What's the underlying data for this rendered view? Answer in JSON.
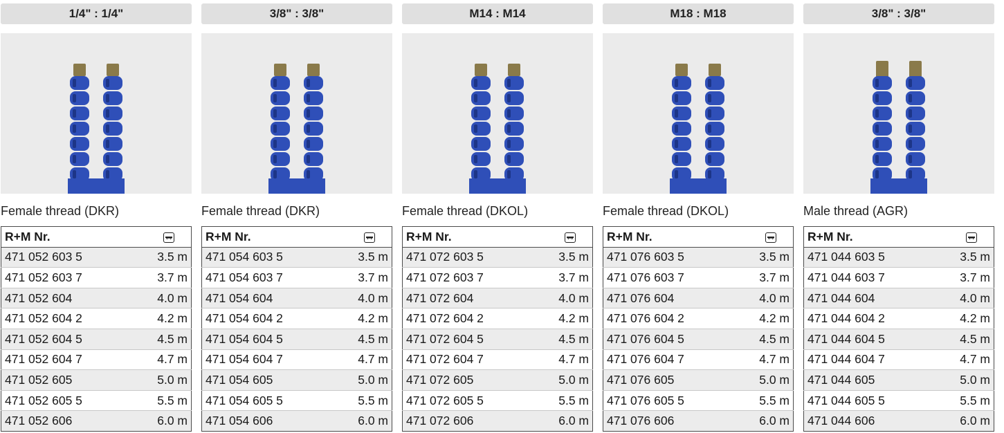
{
  "table_header": {
    "part_no": "R+M Nr.",
    "length_icon": "length-arrow-icon"
  },
  "colors": {
    "hose": "#2f4fb8",
    "hose_shadow": "#1d3587",
    "fitting": "#8a7a4a",
    "header_bg": "#e0e0e0",
    "photo_bg": "#ebebeb"
  },
  "columns": [
    {
      "header": "1/4\" : 1/4\"",
      "thread": "Female thread (DKR)",
      "rows": [
        {
          "no": "471 052 603 5",
          "len": "3.5 m"
        },
        {
          "no": "471 052 603 7",
          "len": "3.7 m"
        },
        {
          "no": "471 052 604",
          "len": "4.0 m"
        },
        {
          "no": "471 052 604 2",
          "len": "4.2 m"
        },
        {
          "no": "471 052 604 5",
          "len": "4.5 m"
        },
        {
          "no": "471 052 604 7",
          "len": "4.7 m"
        },
        {
          "no": "471 052 605",
          "len": "5.0 m"
        },
        {
          "no": "471 052 605 5",
          "len": "5.5 m"
        },
        {
          "no": "471 052 606",
          "len": "6.0 m"
        }
      ]
    },
    {
      "header": "3/8\" : 3/8\"",
      "thread": "Female thread (DKR)",
      "rows": [
        {
          "no": "471 054 603 5",
          "len": "3.5 m"
        },
        {
          "no": "471 054 603 7",
          "len": "3.7 m"
        },
        {
          "no": "471 054 604",
          "len": "4.0 m"
        },
        {
          "no": "471 054 604 2",
          "len": "4.2 m"
        },
        {
          "no": "471 054 604 5",
          "len": "4.5 m"
        },
        {
          "no": "471 054 604 7",
          "len": "4.7 m"
        },
        {
          "no": "471 054 605",
          "len": "5.0 m"
        },
        {
          "no": "471 054 605 5",
          "len": "5.5 m"
        },
        {
          "no": "471 054 606",
          "len": "6.0 m"
        }
      ]
    },
    {
      "header": "M14 : M14",
      "thread": "Female thread (DKOL)",
      "rows": [
        {
          "no": "471 072 603 5",
          "len": "3.5 m"
        },
        {
          "no": "471 072 603 7",
          "len": "3.7 m"
        },
        {
          "no": "471 072 604",
          "len": "4.0 m"
        },
        {
          "no": "471 072 604 2",
          "len": "4.2 m"
        },
        {
          "no": "471 072 604 5",
          "len": "4.5 m"
        },
        {
          "no": "471 072 604 7",
          "len": "4.7 m"
        },
        {
          "no": "471 072 605",
          "len": "5.0 m"
        },
        {
          "no": "471 072 605 5",
          "len": "5.5 m"
        },
        {
          "no": "471 072 606",
          "len": "6.0 m"
        }
      ]
    },
    {
      "header": "M18 : M18",
      "thread": "Female thread (DKOL)",
      "rows": [
        {
          "no": "471 076 603 5",
          "len": "3.5 m"
        },
        {
          "no": "471 076 603 7",
          "len": "3.7 m"
        },
        {
          "no": "471 076 604",
          "len": "4.0 m"
        },
        {
          "no": "471 076 604 2",
          "len": "4.2 m"
        },
        {
          "no": "471 076 604 5",
          "len": "4.5 m"
        },
        {
          "no": "471 076 604 7",
          "len": "4.7 m"
        },
        {
          "no": "471 076 605",
          "len": "5.0 m"
        },
        {
          "no": "471 076 605 5",
          "len": "5.5 m"
        },
        {
          "no": "471 076 606",
          "len": "6.0 m"
        }
      ]
    },
    {
      "header": "3/8\" : 3/8\"",
      "thread": "Male thread (AGR)",
      "rows": [
        {
          "no": "471 044 603 5",
          "len": "3.5 m"
        },
        {
          "no": "471 044 603 7",
          "len": "3.7 m"
        },
        {
          "no": "471 044 604",
          "len": "4.0 m"
        },
        {
          "no": "471 044 604 2",
          "len": "4.2 m"
        },
        {
          "no": "471 044 604 5",
          "len": "4.5 m"
        },
        {
          "no": "471 044 604 7",
          "len": "4.7 m"
        },
        {
          "no": "471 044 605",
          "len": "5.0 m"
        },
        {
          "no": "471 044 605 5",
          "len": "5.5 m"
        },
        {
          "no": "471 044 606",
          "len": "6.0 m"
        }
      ]
    }
  ]
}
